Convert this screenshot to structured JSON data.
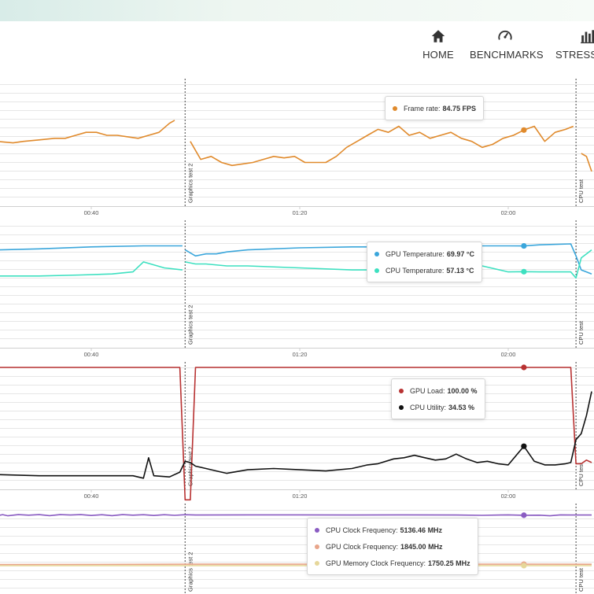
{
  "nav": {
    "items": [
      {
        "label": "HOME",
        "icon": "home-icon"
      },
      {
        "label": "BENCHMARKS",
        "icon": "speedometer-icon"
      },
      {
        "label": "STRESS T",
        "icon": "bar-chart-icon"
      }
    ]
  },
  "colors": {
    "frame_rate": "#e08a2c",
    "gpu_temperature": "#3aa6db",
    "cpu_temperature": "#3de0c0",
    "gpu_load": "#b83232",
    "cpu_utility": "#111111",
    "cpu_clock": "#8a5cc2",
    "gpu_clock": "#e8a58a",
    "gpu_memory_clock": "#e6d79a",
    "grid": "#e6e6e6",
    "divider": "#444444"
  },
  "x_axis": {
    "ticks": [
      "00:40",
      "01:20",
      "02:00"
    ],
    "tick_values": [
      40,
      80,
      120
    ]
  },
  "markers": [
    {
      "label": "Graphics test 2",
      "x": 58
    },
    {
      "label": "CPU test",
      "x": 133
    }
  ],
  "tooltips": [
    {
      "rows": [
        {
          "name": "Frame rate:",
          "value": "84.75 FPS",
          "color": "#e08a2c"
        }
      ]
    },
    {
      "rows": [
        {
          "name": "GPU Temperature:",
          "value": "69.97 °C",
          "color": "#3aa6db"
        },
        {
          "name": "CPU Temperature:",
          "value": "57.13 °C",
          "color": "#3de0c0"
        }
      ]
    },
    {
      "rows": [
        {
          "name": "GPU Load:",
          "value": "100.00 %",
          "color": "#b83232"
        },
        {
          "name": "CPU Utility:",
          "value": "34.53 %",
          "color": "#111111"
        }
      ]
    },
    {
      "rows": [
        {
          "name": "CPU Clock Frequency:",
          "value": "5136.46 MHz",
          "color": "#8a5cc2"
        },
        {
          "name": "GPU Clock Frequency:",
          "value": "1845.00 MHz",
          "color": "#e8a58a"
        },
        {
          "name": "GPU Memory Clock Frequency:",
          "value": "1750.25 MHz",
          "color": "#e6d79a"
        }
      ]
    }
  ],
  "chart_data": [
    {
      "type": "line",
      "ylim": [
        60,
        100
      ],
      "grid": true,
      "series": [
        {
          "name": "Frame rate",
          "color": "#e08a2c",
          "segments": [
            [
              [
                22,
                81
              ],
              [
                25,
                80.5
              ],
              [
                27,
                81
              ],
              [
                30,
                81.5
              ],
              [
                33,
                82
              ],
              [
                35,
                82
              ],
              [
                37,
                83
              ],
              [
                39,
                84
              ],
              [
                41,
                84
              ],
              [
                43,
                83
              ],
              [
                45,
                83
              ],
              [
                47,
                82.5
              ],
              [
                49,
                82
              ],
              [
                51,
                83
              ],
              [
                53,
                84
              ],
              [
                55,
                87
              ],
              [
                56,
                88
              ]
            ],
            [
              [
                59,
                81
              ],
              [
                61,
                75
              ],
              [
                63,
                76
              ],
              [
                65,
                74
              ],
              [
                67,
                73
              ],
              [
                69,
                73.5
              ],
              [
                71,
                74
              ],
              [
                73,
                75
              ],
              [
                75,
                76
              ],
              [
                77,
                75.5
              ],
              [
                79,
                76
              ],
              [
                81,
                74
              ],
              [
                83,
                74
              ],
              [
                85,
                74
              ],
              [
                87,
                76
              ],
              [
                89,
                79
              ],
              [
                91,
                81
              ],
              [
                93,
                83
              ],
              [
                95,
                85
              ],
              [
                97,
                84
              ],
              [
                99,
                86
              ],
              [
                101,
                83
              ],
              [
                103,
                84
              ],
              [
                105,
                82
              ],
              [
                107,
                83
              ],
              [
                109,
                84
              ],
              [
                111,
                82
              ],
              [
                113,
                81
              ],
              [
                115,
                79
              ],
              [
                117,
                80
              ],
              [
                119,
                82
              ],
              [
                121,
                83
              ],
              [
                123,
                84.75
              ],
              [
                125,
                86
              ],
              [
                127,
                81
              ],
              [
                129,
                84
              ],
              [
                131,
                85
              ],
              [
                132.5,
                86
              ]
            ],
            [
              [
                134,
                77
              ],
              [
                135,
                76
              ],
              [
                136,
                71
              ]
            ]
          ]
        }
      ]
    },
    {
      "type": "line",
      "ylim": [
        20,
        80
      ],
      "grid": true,
      "series": [
        {
          "name": "GPU Temperature",
          "color": "#3aa6db",
          "segments": [
            [
              [
                22,
                68
              ],
              [
                30,
                68.5
              ],
              [
                40,
                69.5
              ],
              [
                50,
                70
              ],
              [
                57.5,
                70
              ]
            ],
            [
              [
                58,
                68
              ],
              [
                60,
                65
              ],
              [
                62,
                66
              ],
              [
                64,
                66
              ],
              [
                66,
                67
              ],
              [
                70,
                68
              ],
              [
                80,
                69
              ],
              [
                90,
                69.5
              ],
              [
                100,
                69.5
              ],
              [
                110,
                70
              ],
              [
                120,
                70
              ],
              [
                123,
                69.97
              ],
              [
                126,
                70.5
              ],
              [
                132,
                71
              ],
              [
                133,
                65
              ],
              [
                134,
                58
              ],
              [
                135,
                57
              ],
              [
                136,
                56
              ]
            ]
          ]
        },
        {
          "name": "CPU Temperature",
          "color": "#3de0c0",
          "segments": [
            [
              [
                22,
                55
              ],
              [
                30,
                55
              ],
              [
                38,
                55.5
              ],
              [
                44,
                56
              ],
              [
                48,
                57
              ],
              [
                50,
                62
              ],
              [
                54,
                59
              ],
              [
                57.5,
                58
              ]
            ],
            [
              [
                58,
                62
              ],
              [
                60,
                61
              ],
              [
                62,
                61
              ],
              [
                66,
                60
              ],
              [
                70,
                60
              ],
              [
                80,
                59
              ],
              [
                90,
                58
              ],
              [
                100,
                58
              ],
              [
                110,
                59
              ],
              [
                115,
                60
              ],
              [
                120,
                57
              ],
              [
                123,
                57.13
              ],
              [
                126,
                57
              ],
              [
                132,
                57
              ],
              [
                133,
                54
              ],
              [
                134,
                64
              ],
              [
                135,
                66
              ],
              [
                136,
                68
              ]
            ]
          ]
        }
      ]
    },
    {
      "type": "line",
      "ylim": [
        0,
        100
      ],
      "grid": true,
      "series": [
        {
          "name": "GPU Load",
          "color": "#b83232",
          "segments": [
            [
              [
                22,
                100
              ],
              [
                57,
                100
              ],
              [
                58,
                -10
              ],
              [
                59,
                -10
              ],
              [
                60,
                100
              ],
              [
                70,
                100
              ],
              [
                90,
                100
              ],
              [
                110,
                100
              ],
              [
                123,
                100
              ],
              [
                132,
                100
              ],
              [
                133,
                20
              ],
              [
                134,
                20
              ],
              [
                135,
                23
              ],
              [
                136,
                21
              ]
            ]
          ]
        },
        {
          "name": "CPU Utility",
          "color": "#111111",
          "segments": [
            [
              [
                22,
                11
              ],
              [
                30,
                10
              ],
              [
                40,
                10
              ],
              [
                48,
                10
              ],
              [
                50,
                8
              ],
              [
                51,
                25
              ],
              [
                52,
                10
              ],
              [
                55,
                9
              ],
              [
                57,
                13
              ],
              [
                58,
                22
              ],
              [
                59,
                21
              ],
              [
                60,
                18
              ],
              [
                62,
                16
              ],
              [
                64,
                14
              ],
              [
                66,
                12
              ],
              [
                70,
                15
              ],
              [
                75,
                16
              ],
              [
                80,
                15
              ],
              [
                85,
                14
              ],
              [
                90,
                16
              ],
              [
                93,
                19
              ],
              [
                95,
                20
              ],
              [
                98,
                24
              ],
              [
                100,
                25
              ],
              [
                102,
                27
              ],
              [
                104,
                25
              ],
              [
                106,
                23
              ],
              [
                108,
                24
              ],
              [
                110,
                28
              ],
              [
                112,
                24
              ],
              [
                114,
                21
              ],
              [
                116,
                22
              ],
              [
                118,
                20
              ],
              [
                120,
                19
              ],
              [
                123,
                34.53
              ],
              [
                125,
                22
              ],
              [
                127,
                19
              ],
              [
                129,
                19
              ],
              [
                131,
                20
              ],
              [
                132,
                21
              ],
              [
                133,
                40
              ],
              [
                134,
                45
              ],
              [
                135,
                60
              ],
              [
                136,
                80
              ]
            ]
          ]
        }
      ]
    },
    {
      "type": "line",
      "ylim": [
        0,
        5500
      ],
      "grid": true,
      "series": [
        {
          "name": "CPU Clock Frequency",
          "color": "#8a5cc2",
          "segments": [
            [
              [
                22,
                5100
              ],
              [
                23,
                5180
              ],
              [
                24,
                5100
              ],
              [
                26,
                5180
              ],
              [
                28,
                5140
              ],
              [
                30,
                5180
              ],
              [
                32,
                5110
              ],
              [
                34,
                5180
              ],
              [
                36,
                5150
              ],
              [
                38,
                5180
              ],
              [
                40,
                5120
              ],
              [
                42,
                5170
              ],
              [
                44,
                5110
              ],
              [
                46,
                5180
              ],
              [
                48,
                5140
              ],
              [
                50,
                5170
              ],
              [
                52,
                5120
              ],
              [
                54,
                5170
              ],
              [
                56,
                5130
              ],
              [
                58,
                5170
              ],
              [
                60,
                5150
              ],
              [
                70,
                5160
              ],
              [
                80,
                5160
              ],
              [
                90,
                5150
              ],
              [
                100,
                5160
              ],
              [
                110,
                5150
              ],
              [
                115,
                5130
              ],
              [
                120,
                5160
              ],
              [
                123,
                5136.46
              ],
              [
                126,
                5140
              ],
              [
                128,
                5100
              ],
              [
                130,
                5160
              ],
              [
                132,
                5150
              ],
              [
                136,
                5150
              ]
            ]
          ]
        },
        {
          "name": "GPU Clock Frequency",
          "color": "#e8a58a",
          "segments": [
            [
              [
                22,
                1820
              ],
              [
                40,
                1830
              ],
              [
                60,
                1845
              ],
              [
                80,
                1845
              ],
              [
                100,
                1845
              ],
              [
                120,
                1845
              ],
              [
                123,
                1845
              ],
              [
                136,
                1840
              ]
            ]
          ]
        },
        {
          "name": "GPU Memory Clock Frequency",
          "color": "#e6d79a",
          "segments": [
            [
              [
                22,
                1745
              ],
              [
                60,
                1750
              ],
              [
                100,
                1750
              ],
              [
                123,
                1750.25
              ],
              [
                136,
                1750
              ]
            ]
          ]
        }
      ]
    }
  ]
}
